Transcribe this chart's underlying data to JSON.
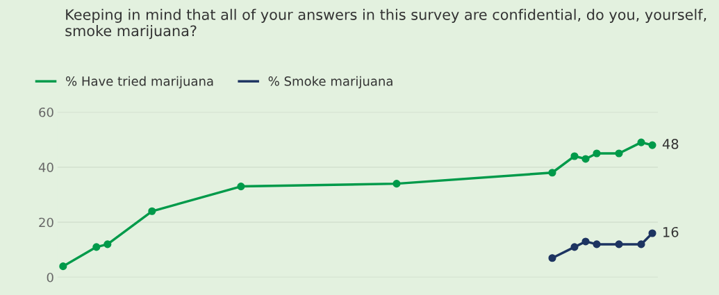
{
  "chart_data": {
    "type": "line",
    "title": "Keeping in mind that all of your answers in this survey are confidential, do you, yourself, smoke marijuana?",
    "categories": [
      null,
      null,
      null,
      null,
      null,
      null,
      null,
      null,
      null,
      null,
      null,
      null,
      null,
      null,
      null,
      null,
      null,
      null,
      null,
      null,
      null,
      null,
      null,
      null,
      null,
      null,
      null,
      null,
      null,
      null,
      null,
      null,
      null,
      null,
      null,
      null,
      null,
      null,
      null,
      null,
      null,
      null,
      null,
      null,
      null,
      null,
      null,
      null,
      null,
      null,
      null,
      null,
      null,
      null
    ],
    "tick_labels": "y",
    "ylim": [
      0,
      60
    ],
    "yticks": [
      0,
      20,
      40,
      60
    ],
    "grid": "y",
    "legend": "top left",
    "marker": "circle",
    "line_style": "solid",
    "series": [
      {
        "name": "% Have tried marijuana",
        "color": "#009a4a",
        "values": [
          4,
          null,
          null,
          11,
          12,
          null,
          null,
          null,
          24,
          null,
          null,
          null,
          null,
          null,
          null,
          null,
          33,
          null,
          null,
          null,
          null,
          null,
          null,
          null,
          null,
          null,
          null,
          null,
          null,
          null,
          34,
          null,
          null,
          null,
          null,
          null,
          null,
          null,
          null,
          null,
          null,
          null,
          null,
          null,
          38,
          null,
          44,
          43,
          45,
          null,
          45,
          null,
          49,
          48
        ],
        "value_labels": [
          null,
          null,
          null,
          null,
          null,
          null,
          null,
          null,
          null,
          null,
          null,
          null,
          null,
          null,
          null,
          null,
          null,
          null,
          null,
          null,
          null,
          null,
          null,
          null,
          null,
          null,
          null,
          null,
          null,
          null,
          null,
          null,
          null,
          null,
          null,
          null,
          null,
          null,
          null,
          null,
          null,
          null,
          null,
          null,
          null,
          null,
          null,
          null,
          null,
          null,
          null,
          null,
          null,
          "48"
        ]
      },
      {
        "name": "% Smoke marijuana",
        "color": "#1d3461",
        "values": [
          null,
          null,
          null,
          null,
          null,
          null,
          null,
          null,
          null,
          null,
          null,
          null,
          null,
          null,
          null,
          null,
          null,
          null,
          null,
          null,
          null,
          null,
          null,
          null,
          null,
          null,
          null,
          null,
          null,
          null,
          null,
          null,
          null,
          null,
          null,
          null,
          null,
          null,
          null,
          null,
          null,
          null,
          null,
          null,
          7,
          null,
          11,
          13,
          12,
          null,
          12,
          null,
          12,
          16
        ],
        "value_labels": [
          null,
          null,
          null,
          null,
          null,
          null,
          null,
          null,
          null,
          null,
          null,
          null,
          null,
          null,
          null,
          null,
          null,
          null,
          null,
          null,
          null,
          null,
          null,
          null,
          null,
          null,
          null,
          null,
          null,
          null,
          null,
          null,
          null,
          null,
          null,
          null,
          null,
          null,
          null,
          null,
          null,
          null,
          null,
          null,
          null,
          null,
          null,
          null,
          null,
          null,
          null,
          null,
          null,
          "16"
        ]
      }
    ]
  }
}
